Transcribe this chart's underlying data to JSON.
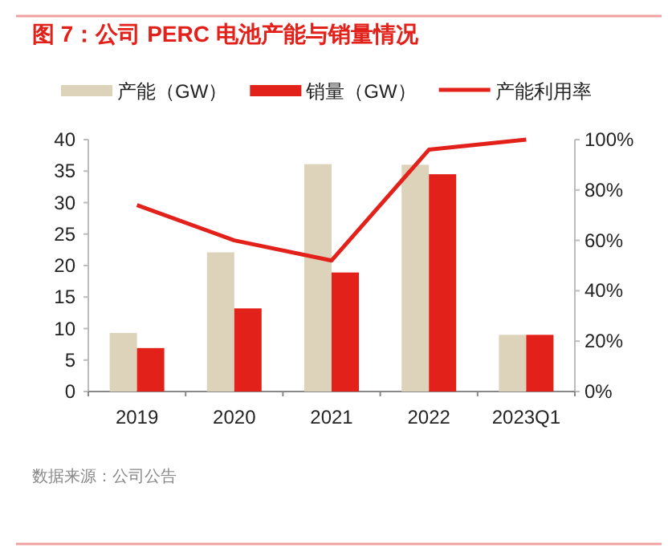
{
  "chart_data": {
    "type": "bar",
    "title": "图 7：公司 PERC 电池产能与销量情况",
    "categories": [
      "2019",
      "2020",
      "2021",
      "2022",
      "2023Q1"
    ],
    "series": [
      {
        "name": "产能（GW）",
        "color": "#ddd3bb",
        "values": [
          9.3,
          22.1,
          36.1,
          36.0,
          9.0
        ]
      },
      {
        "name": "销量（GW）",
        "color": "#e3211b",
        "values": [
          6.9,
          13.2,
          18.9,
          34.5,
          9.0
        ]
      },
      {
        "name": "产能利用率",
        "type": "line",
        "axis": "y2",
        "color": "#e3211b",
        "values": [
          74,
          60,
          52,
          96,
          100
        ]
      }
    ],
    "ylim": [
      0,
      40
    ],
    "yticks": [
      0,
      5,
      10,
      15,
      20,
      25,
      30,
      35,
      40
    ],
    "y2lim": [
      0,
      100
    ],
    "y2ticks": [
      {
        "value": 0,
        "label": "0%"
      },
      {
        "value": 20,
        "label": "20%"
      },
      {
        "value": 40,
        "label": "40%"
      },
      {
        "value": 60,
        "label": "60%"
      },
      {
        "value": 80,
        "label": "80%"
      },
      {
        "value": 100,
        "label": "100%"
      }
    ],
    "legend": "top",
    "grid": false,
    "marker": "none",
    "annotations": [
      "数据来源：公司公告"
    ]
  }
}
